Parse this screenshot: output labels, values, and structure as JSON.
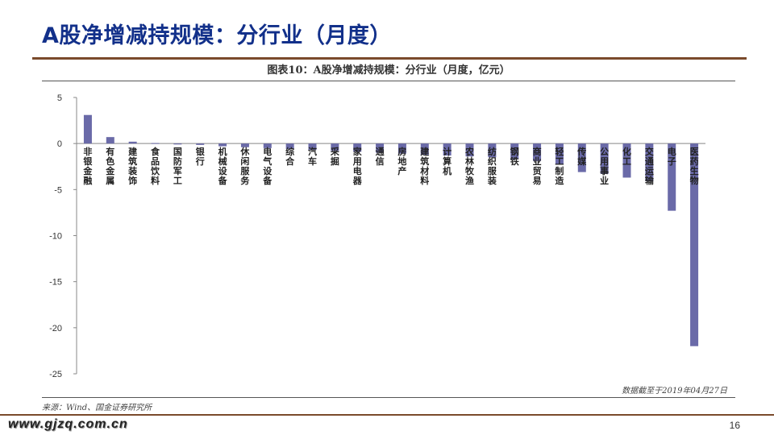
{
  "slide": {
    "title": "A股净增减持规模：分行业（月度）",
    "page_number": "16",
    "website": "www.gjzq.com.cn"
  },
  "chart_title": "图表10：A股净增减持规模：分行业（月度，亿元）",
  "note": "数据截至于2019年04月27日",
  "source": "来源：Wind、国金证券研究所",
  "colors": {
    "bar": "#6a6aa8",
    "title": "#12308a",
    "rule": "#7a4a2c"
  },
  "chart_data": {
    "type": "bar",
    "title": "A股净增减持规模：分行业（月度，亿元）",
    "xlabel": "",
    "ylabel": "",
    "ylim": [
      -25,
      5
    ],
    "yticks": [
      5,
      0,
      -5,
      -10,
      -15,
      -20,
      -25
    ],
    "categories": [
      "非银金融",
      "有色金属",
      "建筑装饰",
      "食品饮料",
      "国防军工",
      "银行",
      "机械设备",
      "休闲服务",
      "电气设备",
      "综合",
      "汽车",
      "采掘",
      "家用电器",
      "通信",
      "房地产",
      "建筑材料",
      "计算机",
      "农林牧渔",
      "纺织服装",
      "钢铁",
      "商业贸易",
      "轻工制造",
      "传媒",
      "公用事业",
      "化工",
      "交通运输",
      "电子",
      "医药生物"
    ],
    "values": [
      3.1,
      0.7,
      0.2,
      0.05,
      -0.1,
      -0.15,
      -0.3,
      -0.4,
      -0.5,
      -0.6,
      -0.7,
      -0.8,
      -0.9,
      -1.0,
      -1.1,
      -1.2,
      -1.3,
      -1.4,
      -1.5,
      -1.7,
      -1.9,
      -2.3,
      -3.1,
      -3.3,
      -3.7,
      -4.1,
      -7.3,
      -22.0
    ],
    "grid": false,
    "legend": "none"
  }
}
